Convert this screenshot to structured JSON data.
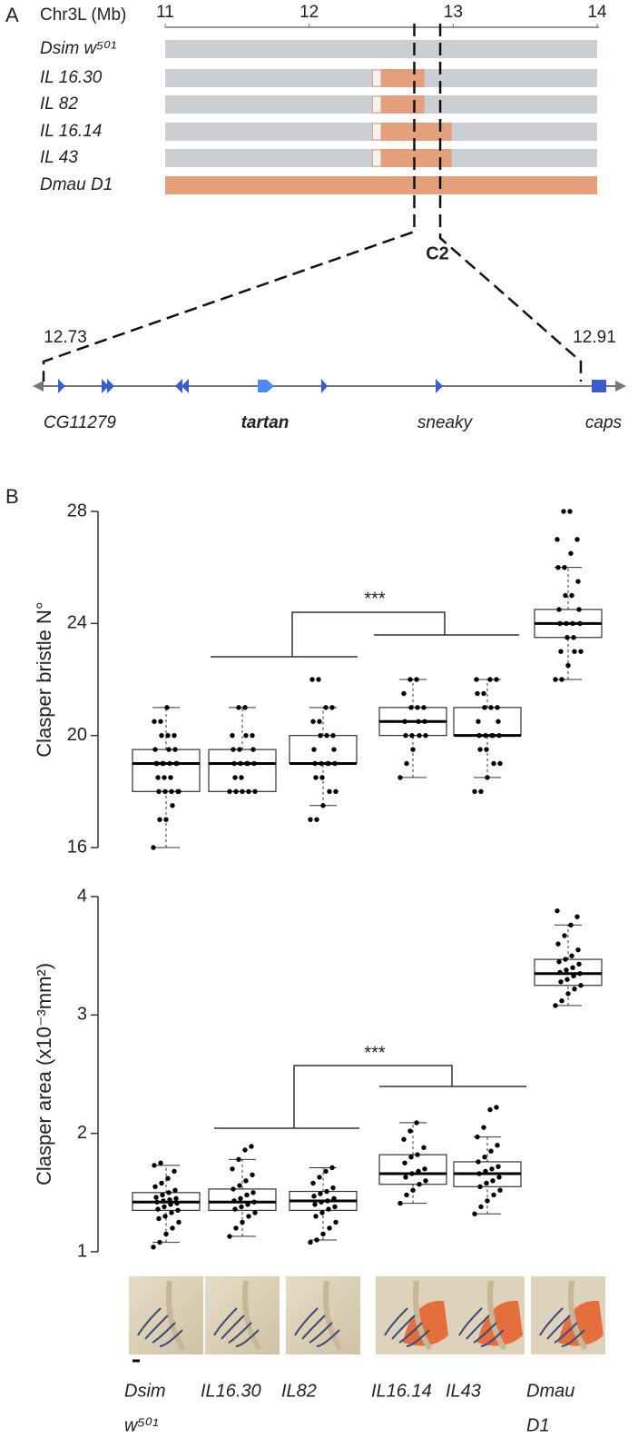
{
  "panel_a": {
    "label": "A",
    "axis_title": "Chr3L (Mb)",
    "xlim": [
      11,
      14
    ],
    "xticks": [
      11,
      12,
      13,
      14
    ],
    "lines": [
      {
        "name": "Dsim w⁵⁰¹"
      },
      {
        "name": "IL 16.30",
        "introgression": [
          12.5,
          12.8
        ],
        "uncertain": [
          12.44,
          12.5
        ]
      },
      {
        "name": "IL 82",
        "introgression": [
          12.5,
          12.8
        ],
        "uncertain": [
          12.44,
          12.5
        ]
      },
      {
        "name": "IL 16.14",
        "introgression": [
          12.5,
          12.99
        ],
        "uncertain": [
          12.44,
          12.5
        ]
      },
      {
        "name": "IL 43",
        "introgression": [
          12.5,
          12.99
        ],
        "uncertain": [
          12.44,
          12.5
        ]
      },
      {
        "name": "Dmau D1",
        "introgression": [
          11,
          14
        ]
      }
    ],
    "region_label": "C2",
    "region": [
      12.73,
      12.91
    ],
    "genes": [
      "CG11279",
      "tartan",
      "sneaky",
      "caps"
    ]
  },
  "panel_b_label": "B",
  "chart_data": [
    {
      "type": "box",
      "ylabel": "Clasper bristle N°",
      "ylim": [
        16,
        28
      ],
      "yticks": [
        16,
        20,
        24,
        28
      ],
      "annotation": "***",
      "boxes": [
        {
          "whisker_low": 16,
          "q1": 18,
          "median": 19,
          "q3": 19.5,
          "whisker_high": 21,
          "points": [
            16,
            17,
            17,
            17.5,
            18,
            18,
            18,
            18,
            18,
            18.5,
            18.5,
            18.5,
            19,
            19,
            19,
            19,
            19,
            19,
            19,
            19.5,
            19.5,
            19.5,
            20,
            20,
            20,
            20.5,
            20.5,
            21
          ]
        },
        {
          "whisker_low": 18,
          "q1": 18,
          "median": 19,
          "q3": 19.5,
          "whisker_high": 21,
          "points": [
            18,
            18,
            18,
            18,
            18,
            18.5,
            18.5,
            19,
            19,
            19,
            19,
            19,
            19.5,
            19.5,
            19.5,
            20,
            20,
            20,
            21,
            21
          ]
        },
        {
          "whisker_low": 17.5,
          "q1": 19,
          "median": 19,
          "q3": 20,
          "whisker_high": 21,
          "points": [
            17,
            17,
            17.5,
            18,
            18,
            18.5,
            18.5,
            19,
            19,
            19,
            19,
            19,
            19.5,
            19.5,
            20,
            20,
            20,
            20.5,
            20.5,
            21,
            21,
            22,
            22
          ]
        },
        {
          "whisker_low": 18.5,
          "q1": 20,
          "median": 20.5,
          "q3": 21,
          "whisker_high": 22,
          "points": [
            18.5,
            19,
            19.5,
            20,
            20,
            20,
            20,
            20.5,
            20.5,
            20.5,
            21,
            21,
            21,
            21.5,
            22,
            22
          ]
        },
        {
          "whisker_low": 18.5,
          "q1": 20,
          "median": 20,
          "q3": 21,
          "whisker_high": 22,
          "points": [
            18,
            18,
            18.5,
            19,
            19,
            19.5,
            19.5,
            20,
            20,
            20,
            20,
            20,
            20.5,
            20.5,
            21,
            21,
            21,
            21.5,
            21.5,
            22,
            22,
            22
          ]
        },
        {
          "whisker_low": 22,
          "q1": 23.5,
          "median": 24,
          "q3": 24.5,
          "whisker_high": 26,
          "points": [
            22,
            22,
            22.5,
            23,
            23,
            23,
            23.5,
            23.5,
            24,
            24,
            24,
            24,
            24.5,
            24.5,
            25,
            25,
            25.5,
            26,
            26,
            26.5,
            27,
            27,
            28,
            28
          ]
        }
      ]
    },
    {
      "type": "box",
      "ylabel": "Clasper area (x10⁻³mm²)",
      "ylim": [
        1,
        4
      ],
      "yticks": [
        1,
        2,
        3,
        4
      ],
      "annotation": "***",
      "categories": [
        [
          "Dsim",
          "w⁵⁰¹"
        ],
        [
          "IL16.30"
        ],
        [
          "IL82"
        ],
        [
          "IL16.14"
        ],
        [
          "IL43"
        ],
        [
          "Dmau",
          "D1"
        ]
      ],
      "boxes": [
        {
          "whisker_low": 1.08,
          "q1": 1.35,
          "median": 1.42,
          "q3": 1.5,
          "whisker_high": 1.73,
          "points": [
            1.04,
            1.08,
            1.15,
            1.2,
            1.25,
            1.28,
            1.3,
            1.33,
            1.35,
            1.36,
            1.38,
            1.4,
            1.41,
            1.42,
            1.43,
            1.44,
            1.45,
            1.46,
            1.48,
            1.5,
            1.52,
            1.55,
            1.58,
            1.62,
            1.68,
            1.73,
            1.75
          ]
        },
        {
          "whisker_low": 1.13,
          "q1": 1.35,
          "median": 1.42,
          "q3": 1.53,
          "whisker_high": 1.78,
          "points": [
            1.13,
            1.2,
            1.25,
            1.3,
            1.33,
            1.36,
            1.38,
            1.4,
            1.42,
            1.43,
            1.45,
            1.48,
            1.5,
            1.53,
            1.56,
            1.6,
            1.65,
            1.7,
            1.78,
            1.86,
            1.89
          ]
        },
        {
          "whisker_low": 1.1,
          "q1": 1.35,
          "median": 1.43,
          "q3": 1.51,
          "whisker_high": 1.71,
          "points": [
            1.08,
            1.1,
            1.15,
            1.2,
            1.25,
            1.3,
            1.33,
            1.36,
            1.38,
            1.4,
            1.42,
            1.43,
            1.45,
            1.47,
            1.49,
            1.51,
            1.54,
            1.58,
            1.63,
            1.68,
            1.71
          ]
        },
        {
          "whisker_low": 1.41,
          "q1": 1.57,
          "median": 1.66,
          "q3": 1.82,
          "whisker_high": 2.09,
          "points": [
            1.41,
            1.48,
            1.52,
            1.57,
            1.6,
            1.63,
            1.66,
            1.68,
            1.7,
            1.75,
            1.8,
            1.82,
            1.88,
            1.95,
            2.02,
            2.09
          ]
        },
        {
          "whisker_low": 1.32,
          "q1": 1.55,
          "median": 1.66,
          "q3": 1.76,
          "whisker_high": 1.97,
          "points": [
            1.32,
            1.38,
            1.43,
            1.48,
            1.52,
            1.55,
            1.58,
            1.6,
            1.63,
            1.66,
            1.68,
            1.7,
            1.72,
            1.76,
            1.8,
            1.85,
            1.9,
            1.97,
            2.05,
            2.2,
            2.22
          ]
        },
        {
          "whisker_low": 3.08,
          "q1": 3.25,
          "median": 3.35,
          "q3": 3.47,
          "whisker_high": 3.76,
          "points": [
            3.08,
            3.12,
            3.18,
            3.22,
            3.25,
            3.28,
            3.3,
            3.33,
            3.35,
            3.36,
            3.38,
            3.4,
            3.43,
            3.45,
            3.47,
            3.5,
            3.55,
            3.6,
            3.67,
            3.76,
            3.83,
            3.88
          ]
        }
      ]
    }
  ]
}
